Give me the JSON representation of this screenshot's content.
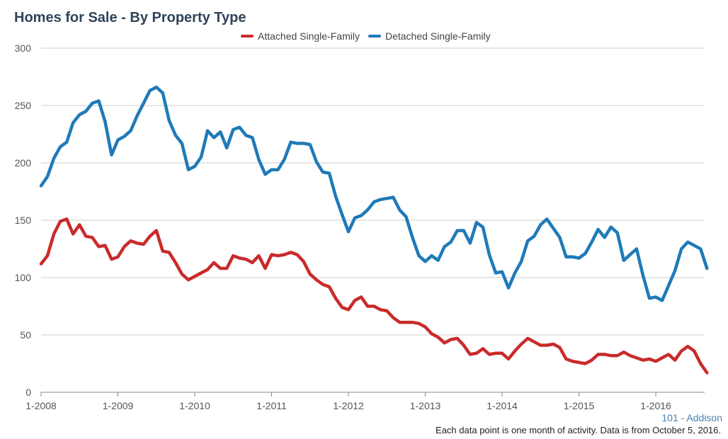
{
  "title": "Homes for Sale - By Property Type",
  "legend": [
    {
      "name": "Attached Single-Family",
      "color": "#c92b2b"
    },
    {
      "name": "Detached Single-Family",
      "color": "#1f7ab8"
    }
  ],
  "source_label": "101 - Addison",
  "footnote": "Each data point is one month of activity. Data is from October 5, 2016.",
  "chart_data": {
    "type": "line",
    "title": "Homes for Sale - By Property Type",
    "xlabel": "",
    "ylabel": "",
    "ylim": [
      0,
      300
    ],
    "yticks": [
      0,
      50,
      100,
      150,
      200,
      250,
      300
    ],
    "xticks": [
      "1-2008",
      "1-2009",
      "1-2010",
      "1-2011",
      "1-2012",
      "1-2013",
      "1-2014",
      "1-2015",
      "1-2016"
    ],
    "x_start": "1-2008",
    "x_end": "9-2016",
    "grid": true,
    "legend_position": "top-center",
    "series": [
      {
        "name": "Attached Single-Family",
        "color": "#c92b2b",
        "values": [
          112,
          119,
          138,
          149,
          151,
          138,
          146,
          136,
          135,
          127,
          128,
          116,
          118,
          127,
          132,
          130,
          129,
          136,
          141,
          123,
          122,
          113,
          103,
          98,
          101,
          104,
          107,
          113,
          108,
          108,
          119,
          117,
          116,
          113,
          119,
          108,
          120,
          119,
          120,
          122,
          120,
          114,
          103,
          98,
          94,
          92,
          82,
          74,
          72,
          80,
          83,
          75,
          75,
          72,
          71,
          65,
          61,
          61,
          61,
          60,
          57,
          51,
          48,
          43,
          46,
          47,
          41,
          33,
          34,
          38,
          33,
          34,
          34,
          29,
          36,
          42,
          47,
          44,
          41,
          41,
          42,
          39,
          29,
          27,
          26,
          25,
          28,
          33,
          33,
          32,
          32,
          35,
          32,
          30,
          28,
          29,
          27,
          30,
          33,
          28,
          36,
          40,
          36,
          25,
          17
        ]
      },
      {
        "name": "Detached Single-Family",
        "color": "#1f7ab8",
        "values": [
          180,
          188,
          204,
          214,
          218,
          235,
          242,
          245,
          252,
          254,
          236,
          207,
          220,
          223,
          228,
          241,
          252,
          263,
          266,
          261,
          237,
          224,
          217,
          194,
          197,
          205,
          228,
          222,
          227,
          213,
          229,
          231,
          224,
          222,
          203,
          190,
          194,
          194,
          203,
          218,
          217,
          217,
          216,
          201,
          192,
          191,
          171,
          155,
          140,
          152,
          154,
          159,
          166,
          168,
          169,
          170,
          159,
          153,
          135,
          119,
          114,
          119,
          115,
          127,
          131,
          141,
          141,
          130,
          148,
          144,
          120,
          104,
          105,
          91,
          104,
          114,
          132,
          136,
          146,
          151,
          143,
          135,
          118,
          118,
          117,
          121,
          131,
          142,
          135,
          144,
          139,
          115,
          120,
          125,
          102,
          82,
          83,
          80,
          93,
          106,
          125,
          131,
          128,
          125,
          108
        ]
      }
    ]
  }
}
